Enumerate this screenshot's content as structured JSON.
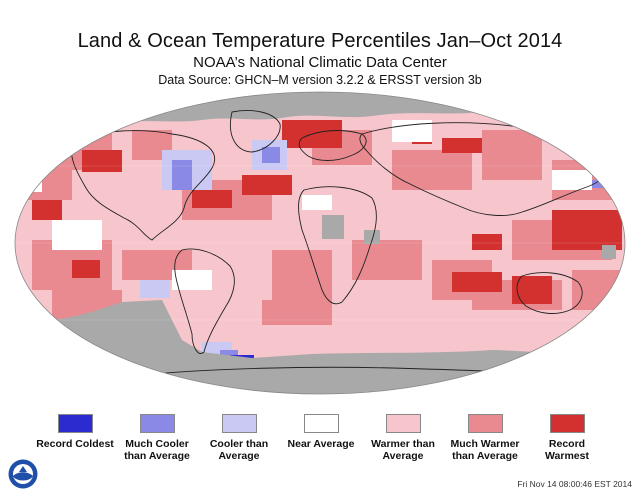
{
  "header": {
    "title": "Land & Ocean Temperature Percentiles Jan–Oct 2014",
    "subtitle": "NOAA’s National Climatic Data Center",
    "source": "Data Source: GHCN–M version 3.2.2 & ERSST version 3b"
  },
  "legend": {
    "items": [
      {
        "label": "Record Coldest",
        "color": "#2b2bd0"
      },
      {
        "label": "Much Cooler than Average",
        "color": "#8a8ae6"
      },
      {
        "label": "Cooler than Average",
        "color": "#c9c9f3"
      },
      {
        "label": "Near Average",
        "color": "#ffffff"
      },
      {
        "label": "Warmer than Average",
        "color": "#f7c6cd"
      },
      {
        "label": "Much Warmer than Average",
        "color": "#e98a90"
      },
      {
        "label": "Record Warmest",
        "color": "#d2312f"
      }
    ]
  },
  "map": {
    "missing_color": "#a9a9a9",
    "land_outline_color": "#222222"
  },
  "footer": {
    "logo": "noaa-logo",
    "timestamp": "Fri Nov 14 08:00:46 EST 2014"
  }
}
